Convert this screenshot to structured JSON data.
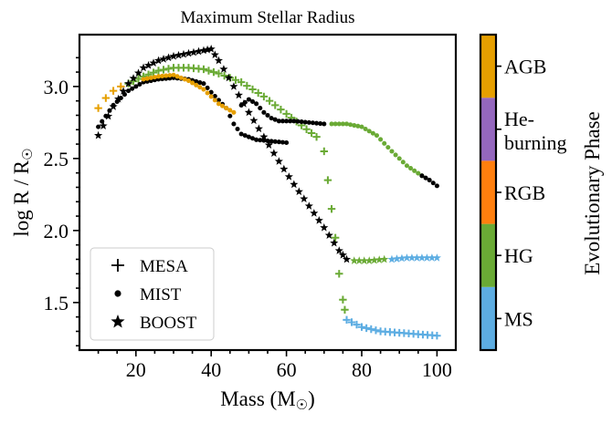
{
  "chart_data": {
    "type": "scatter",
    "title": "Maximum Stellar Radius",
    "xlabel": "Mass (M$_\\odot$)",
    "ylabel": "log R / R$_\\odot$",
    "xlim": [
      5,
      105
    ],
    "ylim": [
      1.17,
      3.36
    ],
    "xticks": [
      "20",
      "40",
      "60",
      "80",
      "100"
    ],
    "yticks": [
      "1.5",
      "2.0",
      "2.5",
      "3.0"
    ],
    "grid": false,
    "legend": {
      "placement": "lower-left",
      "entries": [
        {
          "label": "MESA",
          "marker": "plus"
        },
        {
          "label": "MIST",
          "marker": "circle"
        },
        {
          "label": "BOOST",
          "marker": "star"
        }
      ]
    },
    "colorbar": {
      "label": "Evolutionary Phase",
      "phases": [
        {
          "label": "MS",
          "color": "#5DADE2"
        },
        {
          "label": "HG",
          "color": "#6AAA35"
        },
        {
          "label": "RGB",
          "color": "#FF7F0E"
        },
        {
          "label": "He-\nburning",
          "color": "#9467BD"
        },
        {
          "label": "AGB",
          "color": "#E69F00"
        }
      ]
    },
    "series": [
      {
        "name": "MESA",
        "marker": "plus",
        "segments": [
          {
            "phase": "AGB",
            "points": [
              [
                10,
                2.85
              ],
              [
                12,
                2.92
              ],
              [
                14,
                2.97
              ],
              [
                16,
                3.0
              ]
            ]
          },
          {
            "phase": "HG",
            "points": [
              [
                18,
                3.02
              ],
              [
                22,
                3.07
              ],
              [
                26,
                3.11
              ],
              [
                30,
                3.13
              ],
              [
                34,
                3.13
              ],
              [
                38,
                3.12
              ],
              [
                42,
                3.09
              ],
              [
                48,
                3.03
              ],
              [
                54,
                2.93
              ],
              [
                60,
                2.81
              ],
              [
                64,
                2.73
              ],
              [
                68,
                2.65
              ],
              [
                70,
                2.55
              ],
              [
                71,
                2.35
              ],
              [
                72,
                2.15
              ],
              [
                73,
                1.95
              ],
              [
                74,
                1.7
              ],
              [
                75,
                1.52
              ],
              [
                75.5,
                1.45
              ]
            ]
          },
          {
            "phase": "MS",
            "points": [
              [
                76,
                1.38
              ],
              [
                80,
                1.33
              ],
              [
                85,
                1.3
              ],
              [
                90,
                1.29
              ],
              [
                95,
                1.28
              ],
              [
                100,
                1.27
              ]
            ]
          }
        ]
      },
      {
        "name": "MIST",
        "marker": "circle",
        "segments": [
          {
            "phase": "He-burning",
            "points": [
              [
                10,
                2.72
              ],
              [
                14,
                2.87
              ],
              [
                18,
                2.97
              ],
              [
                22,
                3.03
              ],
              [
                26,
                3.05
              ],
              [
                30,
                3.06
              ],
              [
                34,
                3.05
              ],
              [
                38,
                3.02
              ],
              [
                40,
                2.96
              ],
              [
                44,
                2.85
              ],
              [
                46,
                2.74
              ],
              [
                48,
                2.67
              ],
              [
                52,
                2.63
              ],
              [
                56,
                2.62
              ],
              [
                60,
                2.61
              ]
            ]
          },
          {
            "phase": "AGB",
            "points": [
              [
                22,
                3.05
              ],
              [
                26,
                3.07
              ],
              [
                30,
                3.08
              ],
              [
                34,
                3.04
              ],
              [
                38,
                2.98
              ],
              [
                42,
                2.88
              ],
              [
                46,
                2.82
              ]
            ]
          },
          {
            "phase": "He-burning",
            "points": [
              [
                48,
                2.87
              ],
              [
                50,
                2.91
              ],
              [
                52,
                2.88
              ],
              [
                54,
                2.82
              ],
              [
                56,
                2.78
              ],
              [
                58,
                2.76
              ],
              [
                62,
                2.76
              ],
              [
                66,
                2.75
              ],
              [
                70,
                2.74
              ]
            ]
          },
          {
            "phase": "HG",
            "points": [
              [
                72,
                2.74
              ],
              [
                76,
                2.74
              ],
              [
                80,
                2.72
              ],
              [
                84,
                2.66
              ],
              [
                88,
                2.55
              ],
              [
                92,
                2.45
              ],
              [
                96,
                2.38
              ]
            ]
          },
          {
            "phase": "He-burning",
            "points": [
              [
                96,
                2.38
              ],
              [
                98,
                2.35
              ],
              [
                100,
                2.31
              ]
            ]
          }
        ]
      },
      {
        "name": "BOOST",
        "marker": "star",
        "segments": [
          {
            "phase": "He-burning",
            "points": [
              [
                10,
                2.66
              ],
              [
                14,
                2.86
              ],
              [
                18,
                3.02
              ],
              [
                22,
                3.13
              ],
              [
                26,
                3.18
              ],
              [
                30,
                3.21
              ],
              [
                34,
                3.23
              ],
              [
                38,
                3.25
              ],
              [
                40,
                3.26
              ],
              [
                42,
                3.18
              ],
              [
                46,
                3.0
              ],
              [
                50,
                2.82
              ],
              [
                54,
                2.65
              ],
              [
                58,
                2.48
              ],
              [
                62,
                2.32
              ],
              [
                66,
                2.17
              ],
              [
                70,
                2.02
              ],
              [
                74,
                1.86
              ],
              [
                76,
                1.8
              ]
            ]
          },
          {
            "phase": "HG",
            "points": [
              [
                78,
                1.79
              ],
              [
                82,
                1.79
              ],
              [
                86,
                1.8
              ]
            ]
          },
          {
            "phase": "MS",
            "points": [
              [
                88,
                1.8
              ],
              [
                92,
                1.81
              ],
              [
                96,
                1.81
              ],
              [
                100,
                1.81
              ]
            ]
          }
        ]
      }
    ]
  }
}
